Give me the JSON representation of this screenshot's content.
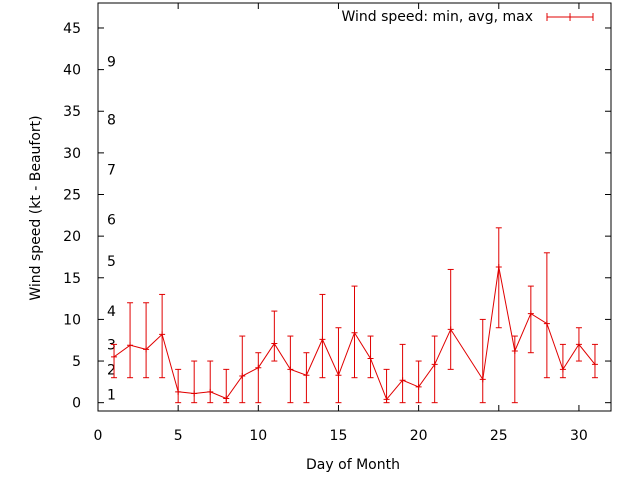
{
  "chart_data": {
    "type": "line",
    "title": "",
    "xlabel": "Day of Month",
    "ylabel": "Wind speed (kt - Beaufort)",
    "xlim": [
      0,
      32
    ],
    "ylim": [
      -1,
      48
    ],
    "xticks": [
      0,
      5,
      10,
      15,
      20,
      25,
      30
    ],
    "yticks": [
      0,
      5,
      10,
      15,
      20,
      25,
      30,
      35,
      40,
      45
    ],
    "grid": false,
    "legend": {
      "position": "top-right",
      "label": "Wind speed: min, avg, max"
    },
    "beaufort_labels": [
      {
        "label": "1",
        "value": 1
      },
      {
        "label": "2",
        "value": 4
      },
      {
        "label": "3",
        "value": 7
      },
      {
        "label": "4",
        "value": 11
      },
      {
        "label": "5",
        "value": 17
      },
      {
        "label": "6",
        "value": 22
      },
      {
        "label": "7",
        "value": 28
      },
      {
        "label": "8",
        "value": 34
      },
      {
        "label": "9",
        "value": 41
      }
    ],
    "series": [
      {
        "name": "Wind speed: min, avg, max",
        "color": "#e00000",
        "x": [
          1,
          2,
          3,
          4,
          5,
          6,
          7,
          8,
          9,
          10,
          11,
          12,
          13,
          14,
          15,
          16,
          17,
          18,
          19,
          20,
          21,
          22,
          24,
          25,
          26,
          27,
          28,
          29,
          30,
          31
        ],
        "avg": [
          5.5,
          6.9,
          6.4,
          8.2,
          1.3,
          1.1,
          1.3,
          0.5,
          3.2,
          4.2,
          7.1,
          4.0,
          3.3,
          7.6,
          3.3,
          8.4,
          5.3,
          0.4,
          2.7,
          1.9,
          4.6,
          8.8,
          2.8,
          16.3,
          6.2,
          10.7,
          9.5,
          4.0,
          7.0,
          4.6
        ],
        "min": [
          3,
          3,
          3,
          3,
          0,
          0,
          0,
          0,
          0,
          0,
          5,
          0,
          0,
          3,
          0,
          3,
          3,
          0,
          0,
          0,
          0,
          4,
          0,
          9,
          0,
          6,
          3,
          3,
          5,
          3
        ],
        "max": [
          7,
          12,
          12,
          13,
          4,
          5,
          5,
          4,
          8,
          6,
          11,
          8,
          6,
          13,
          9,
          14,
          8,
          4,
          7,
          5,
          8,
          16,
          10,
          21,
          8,
          14,
          18,
          7,
          9,
          7
        ]
      }
    ]
  }
}
